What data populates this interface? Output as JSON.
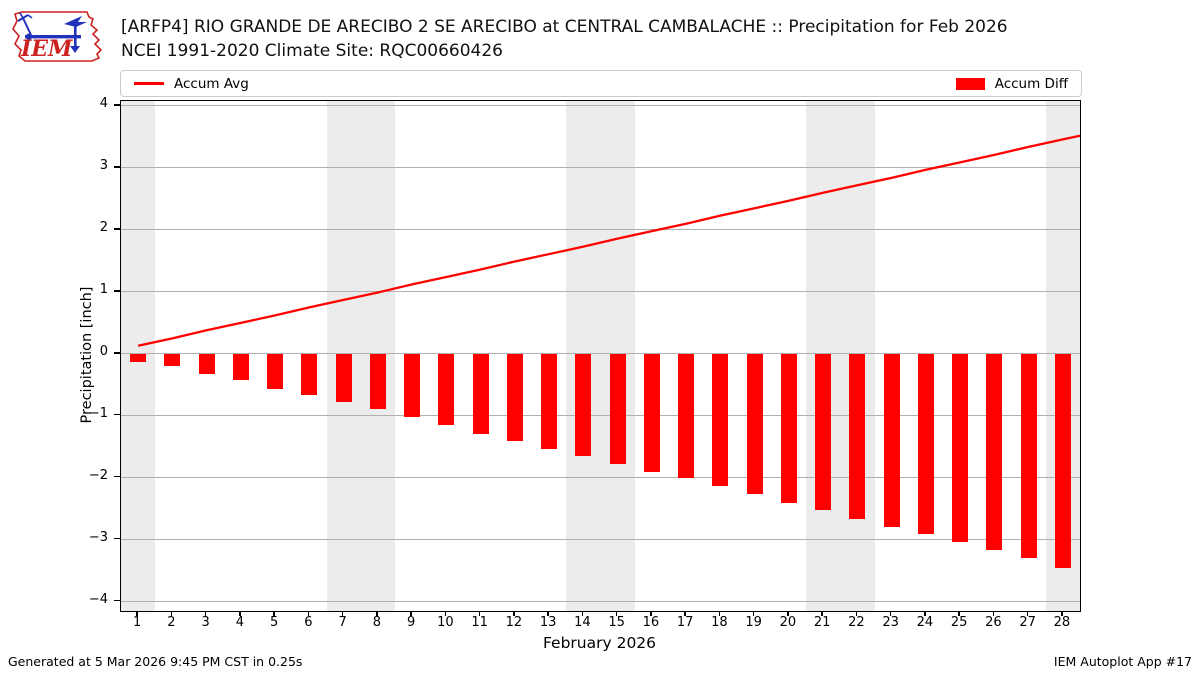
{
  "header": {
    "title_line1": "[ARFP4] RIO GRANDE DE ARECIBO 2 SE ARECIBO at CENTRAL CAMBALACHE :: Precipitation for Feb 2026",
    "title_line2": "NCEI 1991-2020 Climate Site: RQC00660426",
    "logo_text": "IEM"
  },
  "legend": {
    "items": [
      {
        "label": "Accum Avg",
        "swatch": "line"
      },
      {
        "label": "Accum Diff",
        "swatch": "rect"
      }
    ]
  },
  "footer": {
    "left": "Generated at 5 Mar 2026 9:45 PM CST in 0.25s",
    "right": "IEM Autoplot App #17"
  },
  "colors": {
    "accent_red": "#ff0000",
    "weekend_band": "#ececec",
    "gridline": "#b0b0b0",
    "axis": "#000000",
    "legend_border": "#cccccc",
    "logo_red": "#cc2222",
    "logo_blue": "#2233bb"
  },
  "chart_data": {
    "type": "bar",
    "title": "[ARFP4] RIO GRANDE DE ARECIBO 2 SE ARECIBO at CENTRAL CAMBALACHE :: Precipitation for Feb 2026",
    "subtitle": "NCEI 1991-2020 Climate Site: RQC00660426",
    "xlabel": "February 2026",
    "ylabel": "Precipitation [inch]",
    "x_days": [
      1,
      2,
      3,
      4,
      5,
      6,
      7,
      8,
      9,
      10,
      11,
      12,
      13,
      14,
      15,
      16,
      17,
      18,
      19,
      20,
      21,
      22,
      23,
      24,
      25,
      26,
      27,
      28
    ],
    "y_ticks": [
      -4,
      -3,
      -2,
      -1,
      0,
      1,
      2,
      3,
      4
    ],
    "ylim": [
      -4.15,
      4.08
    ],
    "xlim": [
      0.5,
      28.5
    ],
    "grid": true,
    "legend_position": "top",
    "series": [
      {
        "name": "Accum Avg",
        "type": "line",
        "values": [
          0.13,
          0.25,
          0.38,
          0.5,
          0.62,
          0.75,
          0.87,
          0.99,
          1.12,
          1.24,
          1.36,
          1.49,
          1.61,
          1.73,
          1.86,
          1.98,
          2.1,
          2.23,
          2.35,
          2.47,
          2.6,
          2.72,
          2.84,
          2.97,
          3.09,
          3.21,
          3.34,
          3.46
        ]
      },
      {
        "name": "Accum Diff",
        "type": "bar",
        "values": [
          -0.13,
          -0.2,
          -0.32,
          -0.43,
          -0.56,
          -0.67,
          -0.78,
          -0.89,
          -1.02,
          -1.15,
          -1.29,
          -1.4,
          -1.53,
          -1.65,
          -1.77,
          -1.9,
          -2.01,
          -2.13,
          -2.26,
          -2.4,
          -2.52,
          -2.66,
          -2.79,
          -2.9,
          -3.03,
          -3.17,
          -3.3,
          -3.46
        ]
      }
    ],
    "line_edge_point": {
      "x": 28.5,
      "value": 3.52
    },
    "weekend_bands": [
      [
        0.5,
        1.5
      ],
      [
        6.5,
        8.5
      ],
      [
        13.5,
        15.5
      ],
      [
        20.5,
        22.5
      ],
      [
        27.5,
        28.5
      ]
    ]
  }
}
